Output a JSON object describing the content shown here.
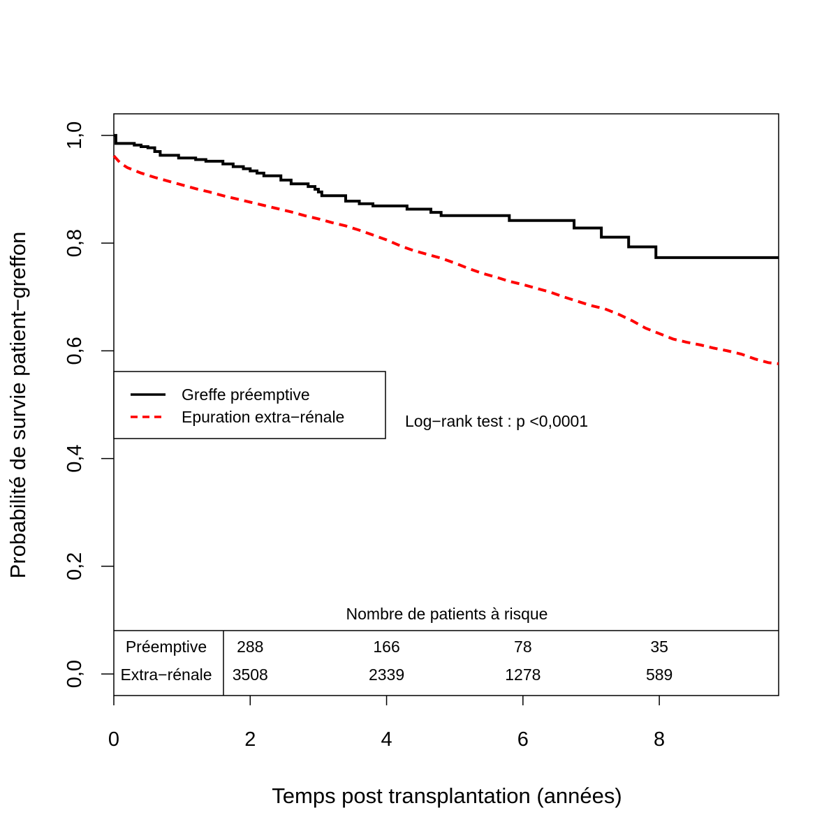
{
  "chart_data": {
    "type": "line",
    "xlabel": "Temps post transplantation (années)",
    "ylabel": "Probabilité de survie patient−greffon",
    "xlim": [
      0,
      9.75
    ],
    "ylim": [
      -0.04,
      1.04
    ],
    "x_ticks": [
      {
        "value": 0,
        "label": "0"
      },
      {
        "value": 2,
        "label": "2"
      },
      {
        "value": 4,
        "label": "4"
      },
      {
        "value": 6,
        "label": "6"
      },
      {
        "value": 8,
        "label": "8"
      }
    ],
    "y_ticks": [
      {
        "value": 0.0,
        "label": "0,0"
      },
      {
        "value": 0.2,
        "label": "0,2"
      },
      {
        "value": 0.4,
        "label": "0,4"
      },
      {
        "value": 0.6,
        "label": "0,6"
      },
      {
        "value": 0.8,
        "label": "0,8"
      },
      {
        "value": 1.0,
        "label": "1,0"
      }
    ],
    "legend": {
      "position": "middle-left",
      "entries": [
        "Greffe préemptive",
        "Epuration extra−rénale"
      ]
    },
    "annotation": "Log−rank test : p <0,0001",
    "series": [
      {
        "name": "Greffe préemptive",
        "color": "#000000",
        "style": "solid-step",
        "points": [
          [
            0,
            1.0
          ],
          [
            0.03,
            0.985
          ],
          [
            0.3,
            0.982
          ],
          [
            0.4,
            0.979
          ],
          [
            0.5,
            0.977
          ],
          [
            0.6,
            0.97
          ],
          [
            0.68,
            0.963
          ],
          [
            0.95,
            0.958
          ],
          [
            1.2,
            0.955
          ],
          [
            1.35,
            0.952
          ],
          [
            1.6,
            0.947
          ],
          [
            1.75,
            0.942
          ],
          [
            1.9,
            0.938
          ],
          [
            2.0,
            0.934
          ],
          [
            2.1,
            0.93
          ],
          [
            2.2,
            0.925
          ],
          [
            2.45,
            0.917
          ],
          [
            2.6,
            0.91
          ],
          [
            2.85,
            0.905
          ],
          [
            2.95,
            0.9
          ],
          [
            3.0,
            0.895
          ],
          [
            3.05,
            0.888
          ],
          [
            3.4,
            0.878
          ],
          [
            3.6,
            0.873
          ],
          [
            3.8,
            0.869
          ],
          [
            4.3,
            0.863
          ],
          [
            4.65,
            0.857
          ],
          [
            4.8,
            0.851
          ],
          [
            5.8,
            0.842
          ],
          [
            6.75,
            0.828
          ],
          [
            7.15,
            0.811
          ],
          [
            7.55,
            0.793
          ],
          [
            7.95,
            0.773
          ],
          [
            9.75,
            0.773
          ]
        ]
      },
      {
        "name": "Epuration extra−rénale",
        "color": "#ff0000",
        "style": "dashed",
        "points": [
          [
            0,
            0.962
          ],
          [
            0.1,
            0.948
          ],
          [
            0.2,
            0.94
          ],
          [
            0.4,
            0.93
          ],
          [
            0.6,
            0.922
          ],
          [
            0.8,
            0.915
          ],
          [
            1.0,
            0.908
          ],
          [
            1.2,
            0.901
          ],
          [
            1.4,
            0.895
          ],
          [
            1.6,
            0.888
          ],
          [
            1.8,
            0.882
          ],
          [
            2.0,
            0.876
          ],
          [
            2.2,
            0.87
          ],
          [
            2.4,
            0.864
          ],
          [
            2.6,
            0.858
          ],
          [
            2.8,
            0.851
          ],
          [
            3.0,
            0.845
          ],
          [
            3.2,
            0.838
          ],
          [
            3.4,
            0.832
          ],
          [
            3.6,
            0.824
          ],
          [
            3.8,
            0.815
          ],
          [
            4.0,
            0.806
          ],
          [
            4.2,
            0.795
          ],
          [
            4.4,
            0.786
          ],
          [
            4.6,
            0.779
          ],
          [
            4.8,
            0.772
          ],
          [
            5.0,
            0.763
          ],
          [
            5.2,
            0.753
          ],
          [
            5.4,
            0.744
          ],
          [
            5.6,
            0.737
          ],
          [
            5.8,
            0.729
          ],
          [
            6.0,
            0.723
          ],
          [
            6.2,
            0.716
          ],
          [
            6.4,
            0.709
          ],
          [
            6.6,
            0.7
          ],
          [
            6.8,
            0.692
          ],
          [
            7.0,
            0.684
          ],
          [
            7.2,
            0.678
          ],
          [
            7.4,
            0.668
          ],
          [
            7.6,
            0.656
          ],
          [
            7.8,
            0.642
          ],
          [
            8.0,
            0.632
          ],
          [
            8.2,
            0.622
          ],
          [
            8.4,
            0.616
          ],
          [
            8.6,
            0.611
          ],
          [
            8.8,
            0.605
          ],
          [
            9.0,
            0.6
          ],
          [
            9.2,
            0.594
          ],
          [
            9.4,
            0.585
          ],
          [
            9.6,
            0.578
          ],
          [
            9.75,
            0.576
          ]
        ]
      }
    ],
    "risk_table": {
      "title": "Nombre de patients à risque",
      "times": [
        2,
        4,
        6,
        8
      ],
      "rows": [
        {
          "label": "Préemptive",
          "counts": [
            "288",
            "166",
            "78",
            "35"
          ]
        },
        {
          "label": "Extra−rénale",
          "counts": [
            "3508",
            "2339",
            "1278",
            "589"
          ]
        }
      ]
    }
  }
}
